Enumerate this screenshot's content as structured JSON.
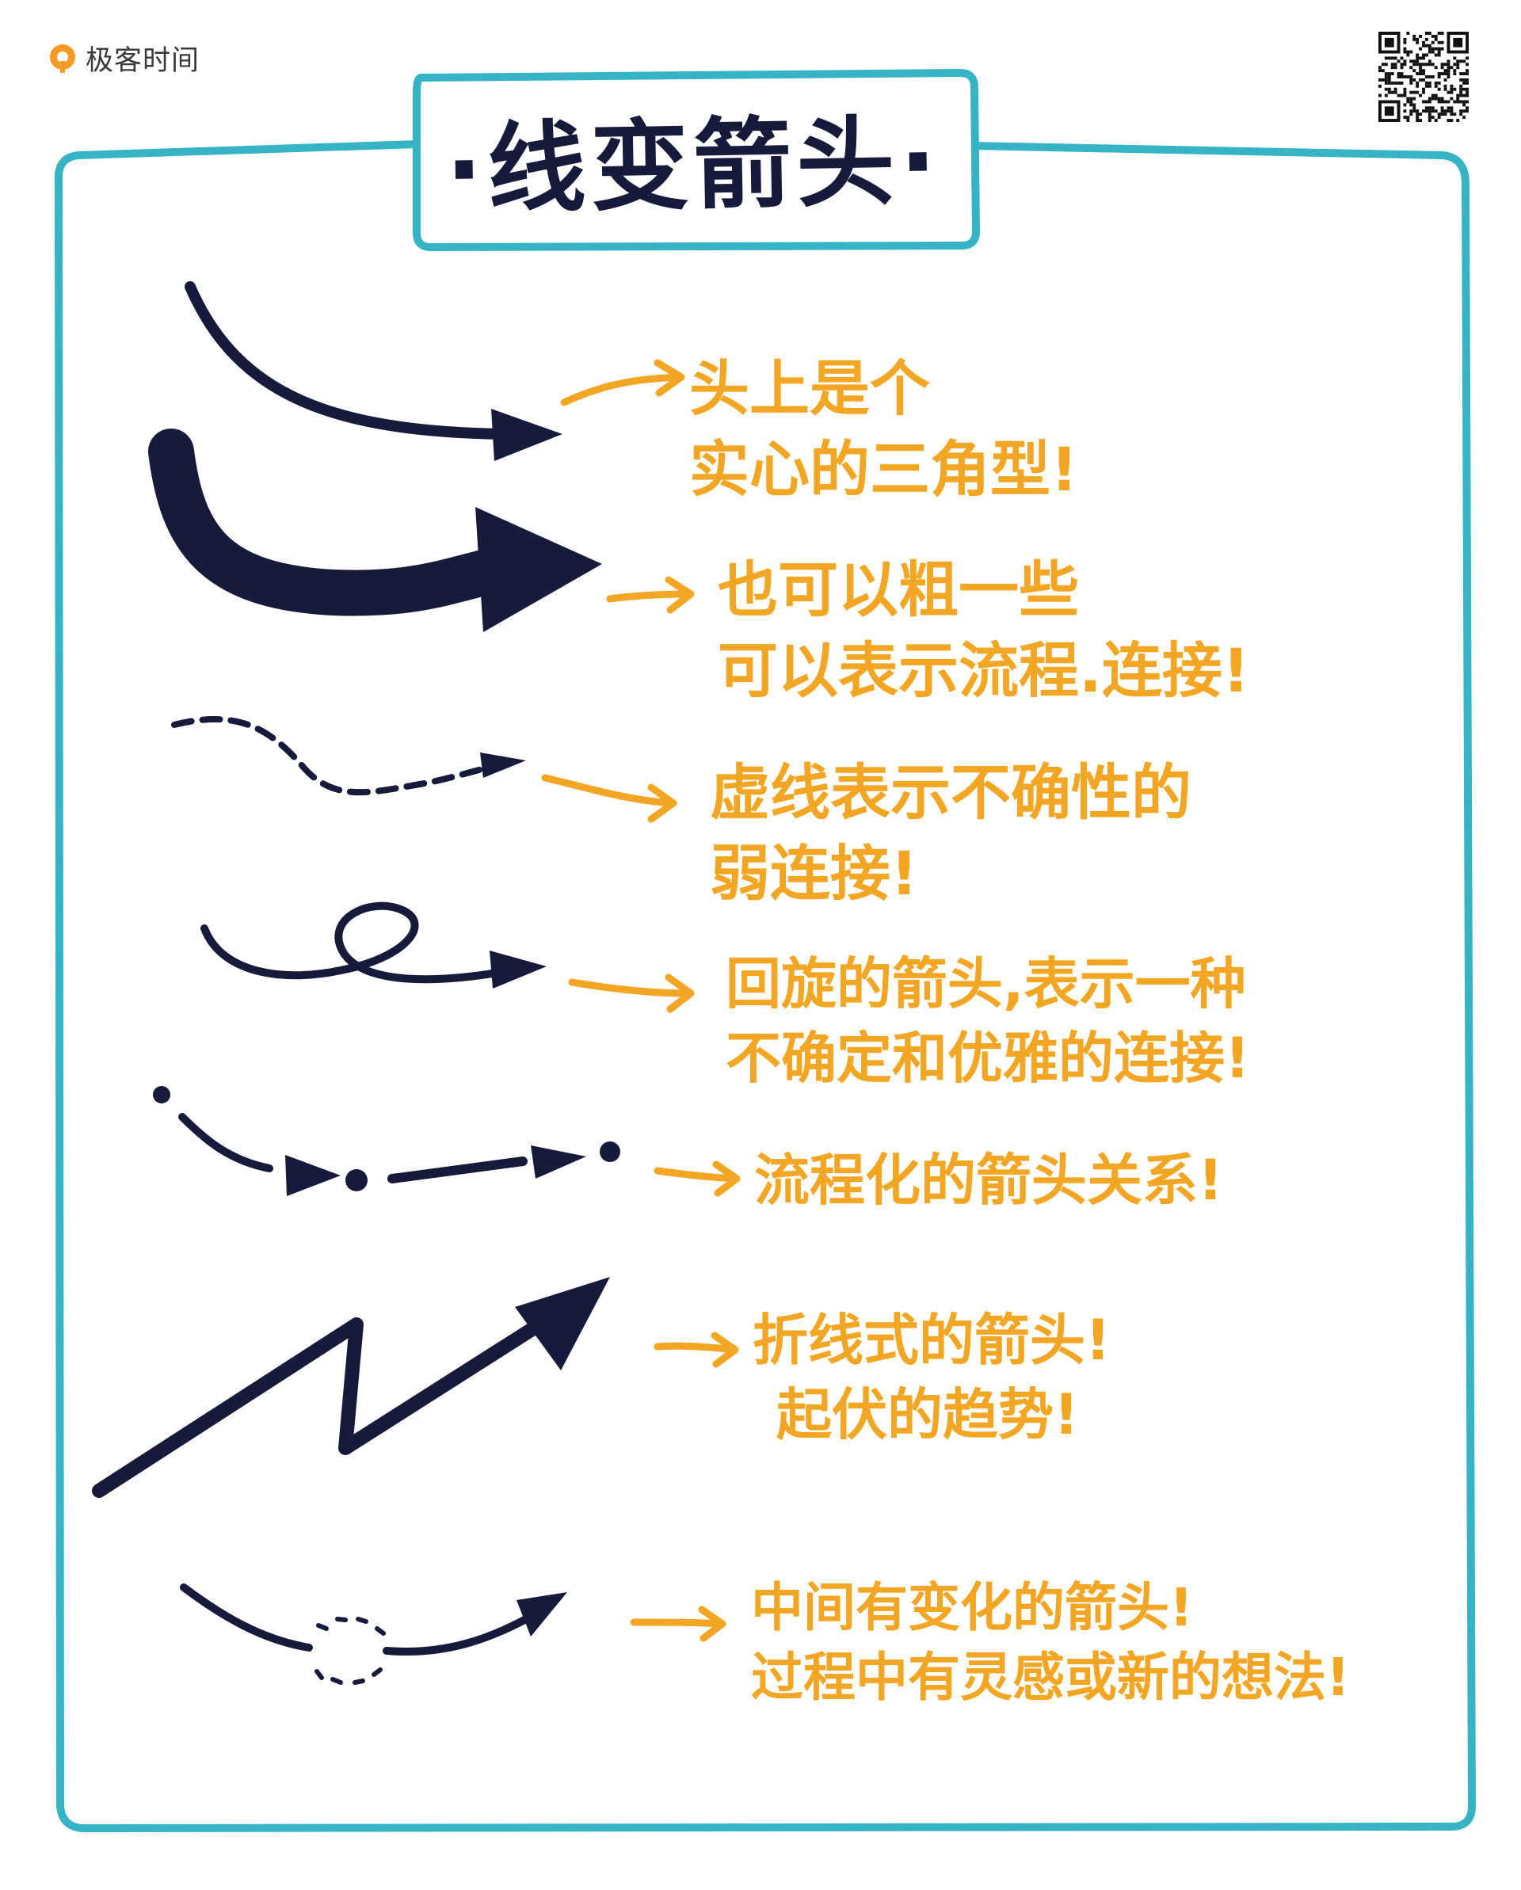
{
  "brand": {
    "name": "极客时间",
    "accent": "#f2a623",
    "logo_color": "#f59a23"
  },
  "title": "·线变箭头·",
  "colors": {
    "frame": "#36b3c4",
    "ink": "#181a3c",
    "note": "#f2a623"
  },
  "notes": [
    {
      "lines": [
        "头上是个",
        "实心的三角型!"
      ]
    },
    {
      "lines": [
        "也可以粗一些",
        "可以表示流程.连接!"
      ]
    },
    {
      "lines": [
        "虚线表示不确性的",
        "弱连接!"
      ]
    },
    {
      "lines": [
        "回旋的箭头,表示一种",
        "不确定和优雅的连接!"
      ]
    },
    {
      "lines": [
        "流程化的箭头关系!"
      ]
    },
    {
      "lines": [
        "折线式的箭头!",
        "起伏的趋势!"
      ]
    },
    {
      "lines": [
        "中间有变化的箭头!",
        "过程中有灵感或新的想法!"
      ]
    }
  ],
  "icons": [
    "logo-icon",
    "qr-code-icon",
    "pointer-arrow-icon"
  ]
}
